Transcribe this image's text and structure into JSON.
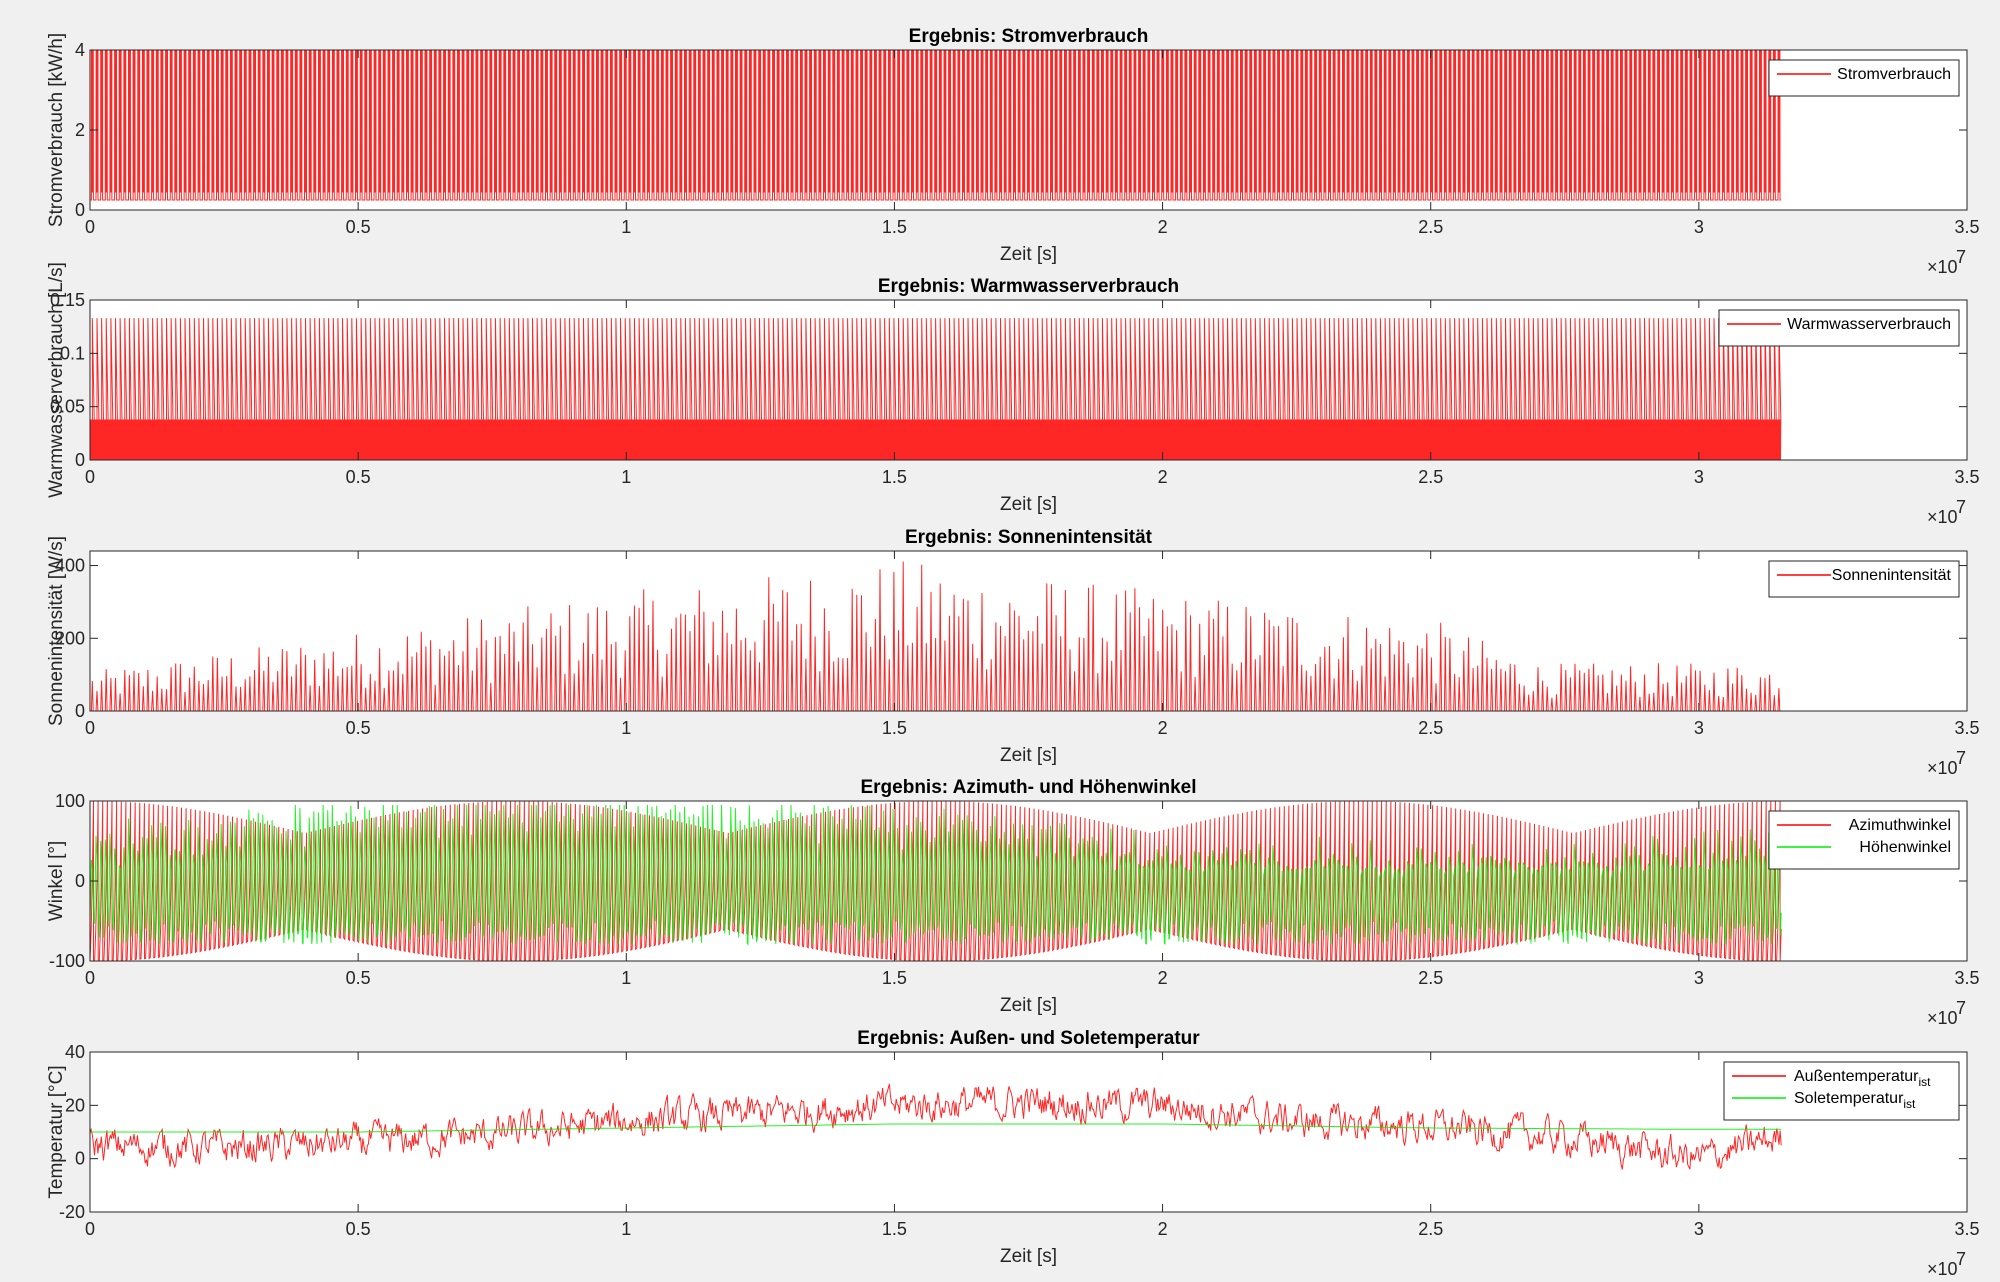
{
  "figure": {
    "background": "#f0f0f0",
    "plot_background": "#ffffff",
    "axis_color": "#262626",
    "grid": false
  },
  "chart_data": [
    {
      "type": "line",
      "title": "Ergebnis: Stromverbrauch",
      "xlabel": "Zeit [s]",
      "ylabel": "Stromverbrauch [kW/h]",
      "x_exponent_label": "×10",
      "x_exponent": "7",
      "xlim": [
        0,
        35000000
      ],
      "ylim": [
        0,
        4
      ],
      "xticks": [
        0,
        5000000,
        10000000,
        15000000,
        20000000,
        25000000,
        30000000,
        35000000
      ],
      "xtick_labels": [
        "0",
        "0.5",
        "1",
        "1.5",
        "2",
        "2.5",
        "3",
        "3.5"
      ],
      "yticks": [
        0,
        2,
        4
      ],
      "ytick_labels": [
        "0",
        "2",
        "4"
      ],
      "legend_position": "top-right",
      "series": [
        {
          "name": "Stromverbrauch",
          "color": "#ff0000",
          "pattern": "pulse",
          "x_end": 31536000,
          "low": 0.25,
          "high": 4.0,
          "min": 0.25,
          "max": 4.0,
          "cycles": 365
        }
      ]
    },
    {
      "type": "line",
      "title": "Ergebnis: Warmwasserverbrauch",
      "xlabel": "Zeit [s]",
      "ylabel": "Warmwasserverbrauch [L/s]",
      "x_exponent_label": "×10",
      "x_exponent": "7",
      "xlim": [
        0,
        35000000
      ],
      "ylim": [
        0,
        0.15
      ],
      "xticks": [
        0,
        5000000,
        10000000,
        15000000,
        20000000,
        25000000,
        30000000,
        35000000
      ],
      "xtick_labels": [
        "0",
        "0.5",
        "1",
        "1.5",
        "2",
        "2.5",
        "3",
        "3.5"
      ],
      "yticks": [
        0,
        0.05,
        0.1,
        0.15
      ],
      "ytick_labels": [
        "0",
        "0.05",
        "0.1",
        "0.15"
      ],
      "legend_position": "top-right",
      "series": [
        {
          "name": "Warmwasserverbrauch",
          "color": "#ff0000",
          "pattern": "pulse_band",
          "x_end": 31536000,
          "low": 0.0,
          "band": 0.038,
          "high": 0.133,
          "min": 0.0,
          "max": 0.133,
          "cycles": 365
        }
      ]
    },
    {
      "type": "line",
      "title": "Ergebnis: Sonnenintensität",
      "xlabel": "Zeit [s]",
      "ylabel": "Sonnenintensität [W/s]",
      "x_exponent_label": "×10",
      "x_exponent": "7",
      "xlim": [
        0,
        35000000
      ],
      "ylim": [
        0,
        440
      ],
      "xticks": [
        0,
        5000000,
        10000000,
        15000000,
        20000000,
        25000000,
        30000000,
        35000000
      ],
      "xtick_labels": [
        "0",
        "0.5",
        "1",
        "1.5",
        "2",
        "2.5",
        "3",
        "3.5"
      ],
      "yticks": [
        0,
        200,
        400
      ],
      "ytick_labels": [
        "0",
        "200",
        "400"
      ],
      "legend_position": "top-right",
      "series": [
        {
          "name": "Sonnenintensität",
          "color": "#ff0000",
          "pattern": "solar",
          "x_end": 31536000,
          "min": 0,
          "max": 440,
          "envelope": [
            [
              0,
              100
            ],
            [
              5000000,
              200
            ],
            [
              10000000,
              300
            ],
            [
              15000000,
              380
            ],
            [
              20000000,
              300
            ],
            [
              25000000,
              230
            ],
            [
              27000000,
              120
            ],
            [
              31536000,
              120
            ]
          ]
        }
      ]
    },
    {
      "type": "line",
      "title": "Ergebnis: Azimuth- und Höhenwinkel",
      "xlabel": "Zeit [s]",
      "ylabel": "Winkel [°]",
      "x_exponent_label": "×10",
      "x_exponent": "7",
      "xlim": [
        0,
        35000000
      ],
      "ylim": [
        -100,
        100
      ],
      "xticks": [
        0,
        5000000,
        10000000,
        15000000,
        20000000,
        25000000,
        30000000,
        35000000
      ],
      "xtick_labels": [
        "0",
        "0.5",
        "1",
        "1.5",
        "2",
        "2.5",
        "3",
        "3.5"
      ],
      "yticks": [
        -100,
        0,
        100
      ],
      "ytick_labels": [
        "-100",
        "0",
        "100"
      ],
      "legend_position": "top-right",
      "series": [
        {
          "name": "Azimuthwinkel",
          "color": "#ff0000",
          "pattern": "azimuth",
          "x_end": 31536000,
          "min": -100,
          "max": 100
        },
        {
          "name": "Höhenwinkel",
          "color": "#00ee00",
          "pattern": "elevation",
          "x_end": 31536000,
          "min": -90,
          "max": 100
        }
      ]
    },
    {
      "type": "line",
      "title": "Ergebnis: Außen- und Soletemperatur",
      "xlabel": "Zeit [s]",
      "ylabel": "Temperatur [°C]",
      "x_exponent_label": "×10",
      "x_exponent": "7",
      "xlim": [
        0,
        35000000
      ],
      "ylim": [
        -20,
        40
      ],
      "xticks": [
        0,
        5000000,
        10000000,
        15000000,
        20000000,
        25000000,
        30000000,
        35000000
      ],
      "xtick_labels": [
        "0",
        "0.5",
        "1",
        "1.5",
        "2",
        "2.5",
        "3",
        "3.5"
      ],
      "yticks": [
        -20,
        0,
        20,
        40
      ],
      "ytick_labels": [
        "-20",
        "0",
        "20",
        "40"
      ],
      "legend_position": "top-right",
      "series": [
        {
          "name": "Außentemperatur_ist",
          "legend_main": "Außentemperatur",
          "legend_sub": "ist",
          "color": "#ff0000",
          "pattern": "temperature",
          "x_end": 31536000,
          "min": -10,
          "max": 37,
          "trend": [
            [
              0,
              5
            ],
            [
              2500000,
              4
            ],
            [
              5000000,
              6
            ],
            [
              7500000,
              9
            ],
            [
              10000000,
              14
            ],
            [
              12500000,
              17
            ],
            [
              15000000,
              20
            ],
            [
              17500000,
              21
            ],
            [
              20000000,
              20
            ],
            [
              22500000,
              14
            ],
            [
              25000000,
              12
            ],
            [
              27500000,
              8
            ],
            [
              30000000,
              0
            ],
            [
              31536000,
              8
            ]
          ]
        },
        {
          "name": "Soletemperatur_ist",
          "legend_main": "Soletemperatur",
          "legend_sub": "ist",
          "color": "#00ee00",
          "pattern": "brine",
          "x_end": 31536000,
          "min": 10,
          "max": 13,
          "trend": [
            [
              0,
              10
            ],
            [
              5000000,
              10
            ],
            [
              10000000,
              11.5
            ],
            [
              15000000,
              13
            ],
            [
              20000000,
              13
            ],
            [
              25000000,
              11.5
            ],
            [
              30000000,
              11
            ],
            [
              31536000,
              11
            ]
          ]
        }
      ]
    }
  ]
}
